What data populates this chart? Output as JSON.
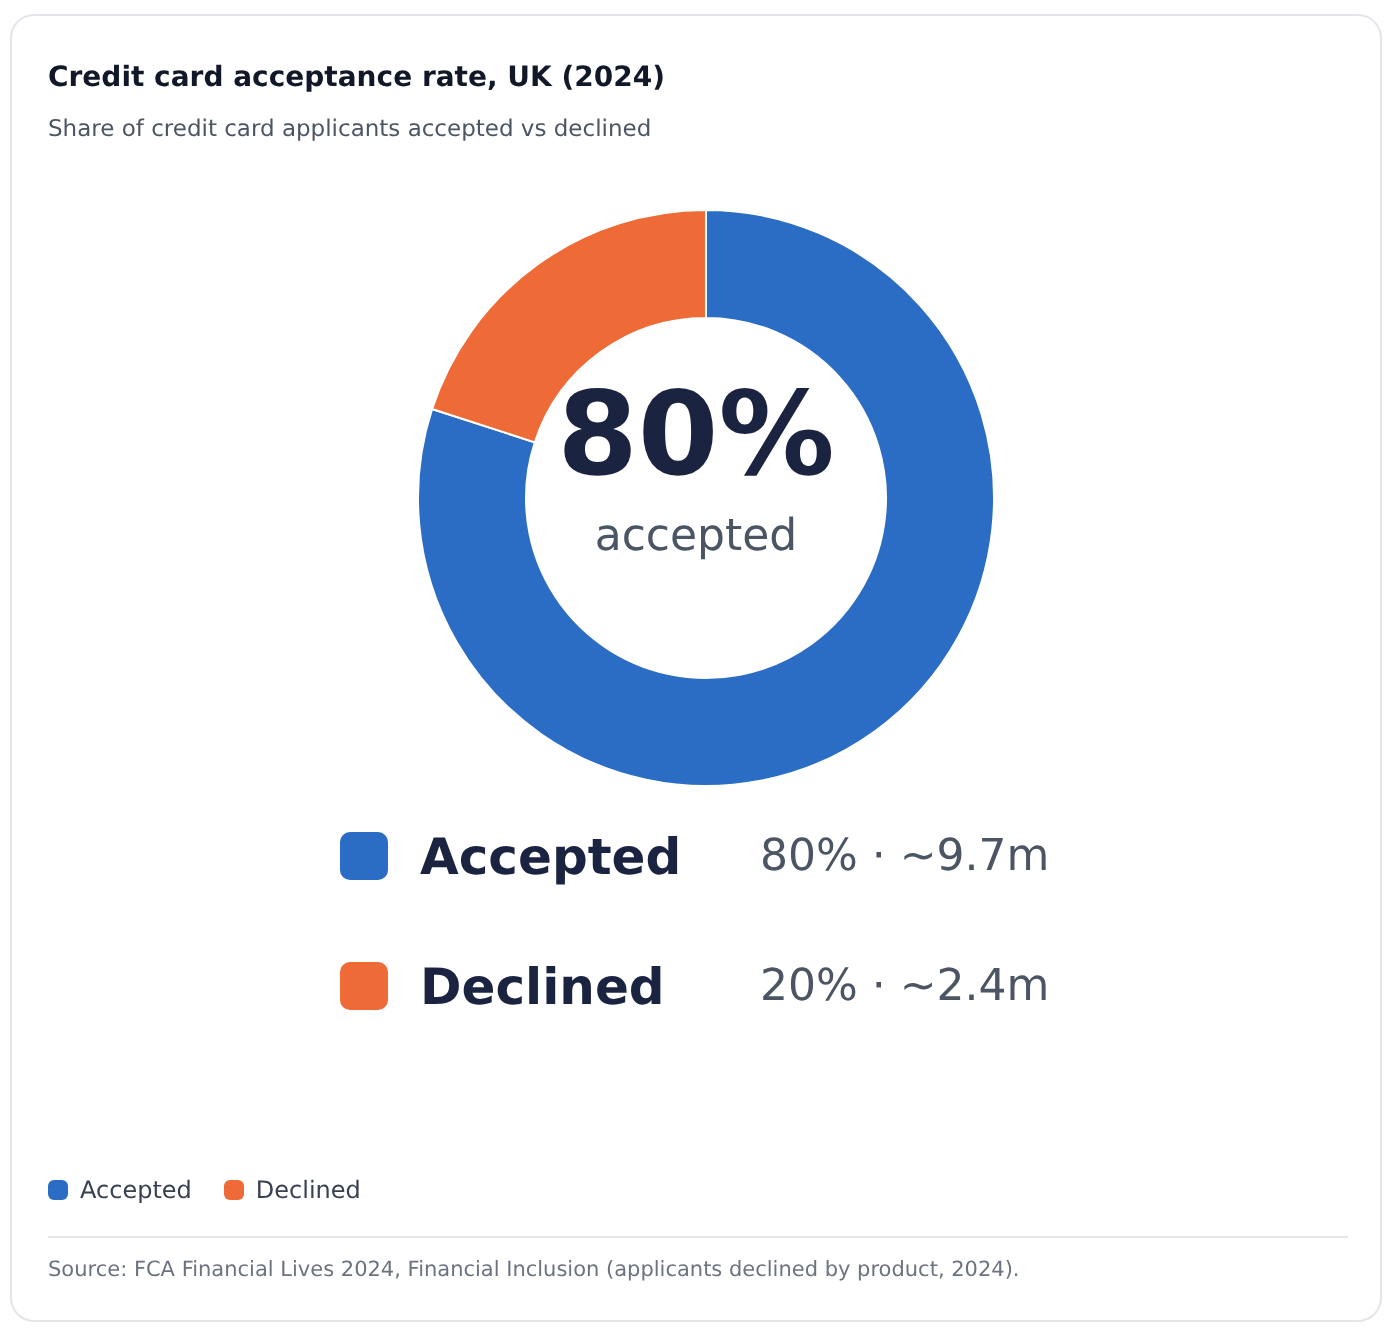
{
  "chart_data": {
    "type": "donut",
    "title": "Credit card acceptance rate, UK (2024)",
    "subtitle": "Share of credit card applicants accepted vs declined",
    "categories": [
      "Accepted",
      "Declined"
    ],
    "values": [
      80,
      20
    ],
    "colors": [
      "#2b6cc4",
      "#ee6b38"
    ],
    "value_labels": [
      "80% · ~9.7m",
      "20% · ~2.4m"
    ],
    "annotations": [
      "80%",
      "accepted",
      "Source: FCA Financial Lives 2024, Financial Inclusion (applicants declined by product, 2024)."
    ],
    "legend": "bottom left"
  }
}
